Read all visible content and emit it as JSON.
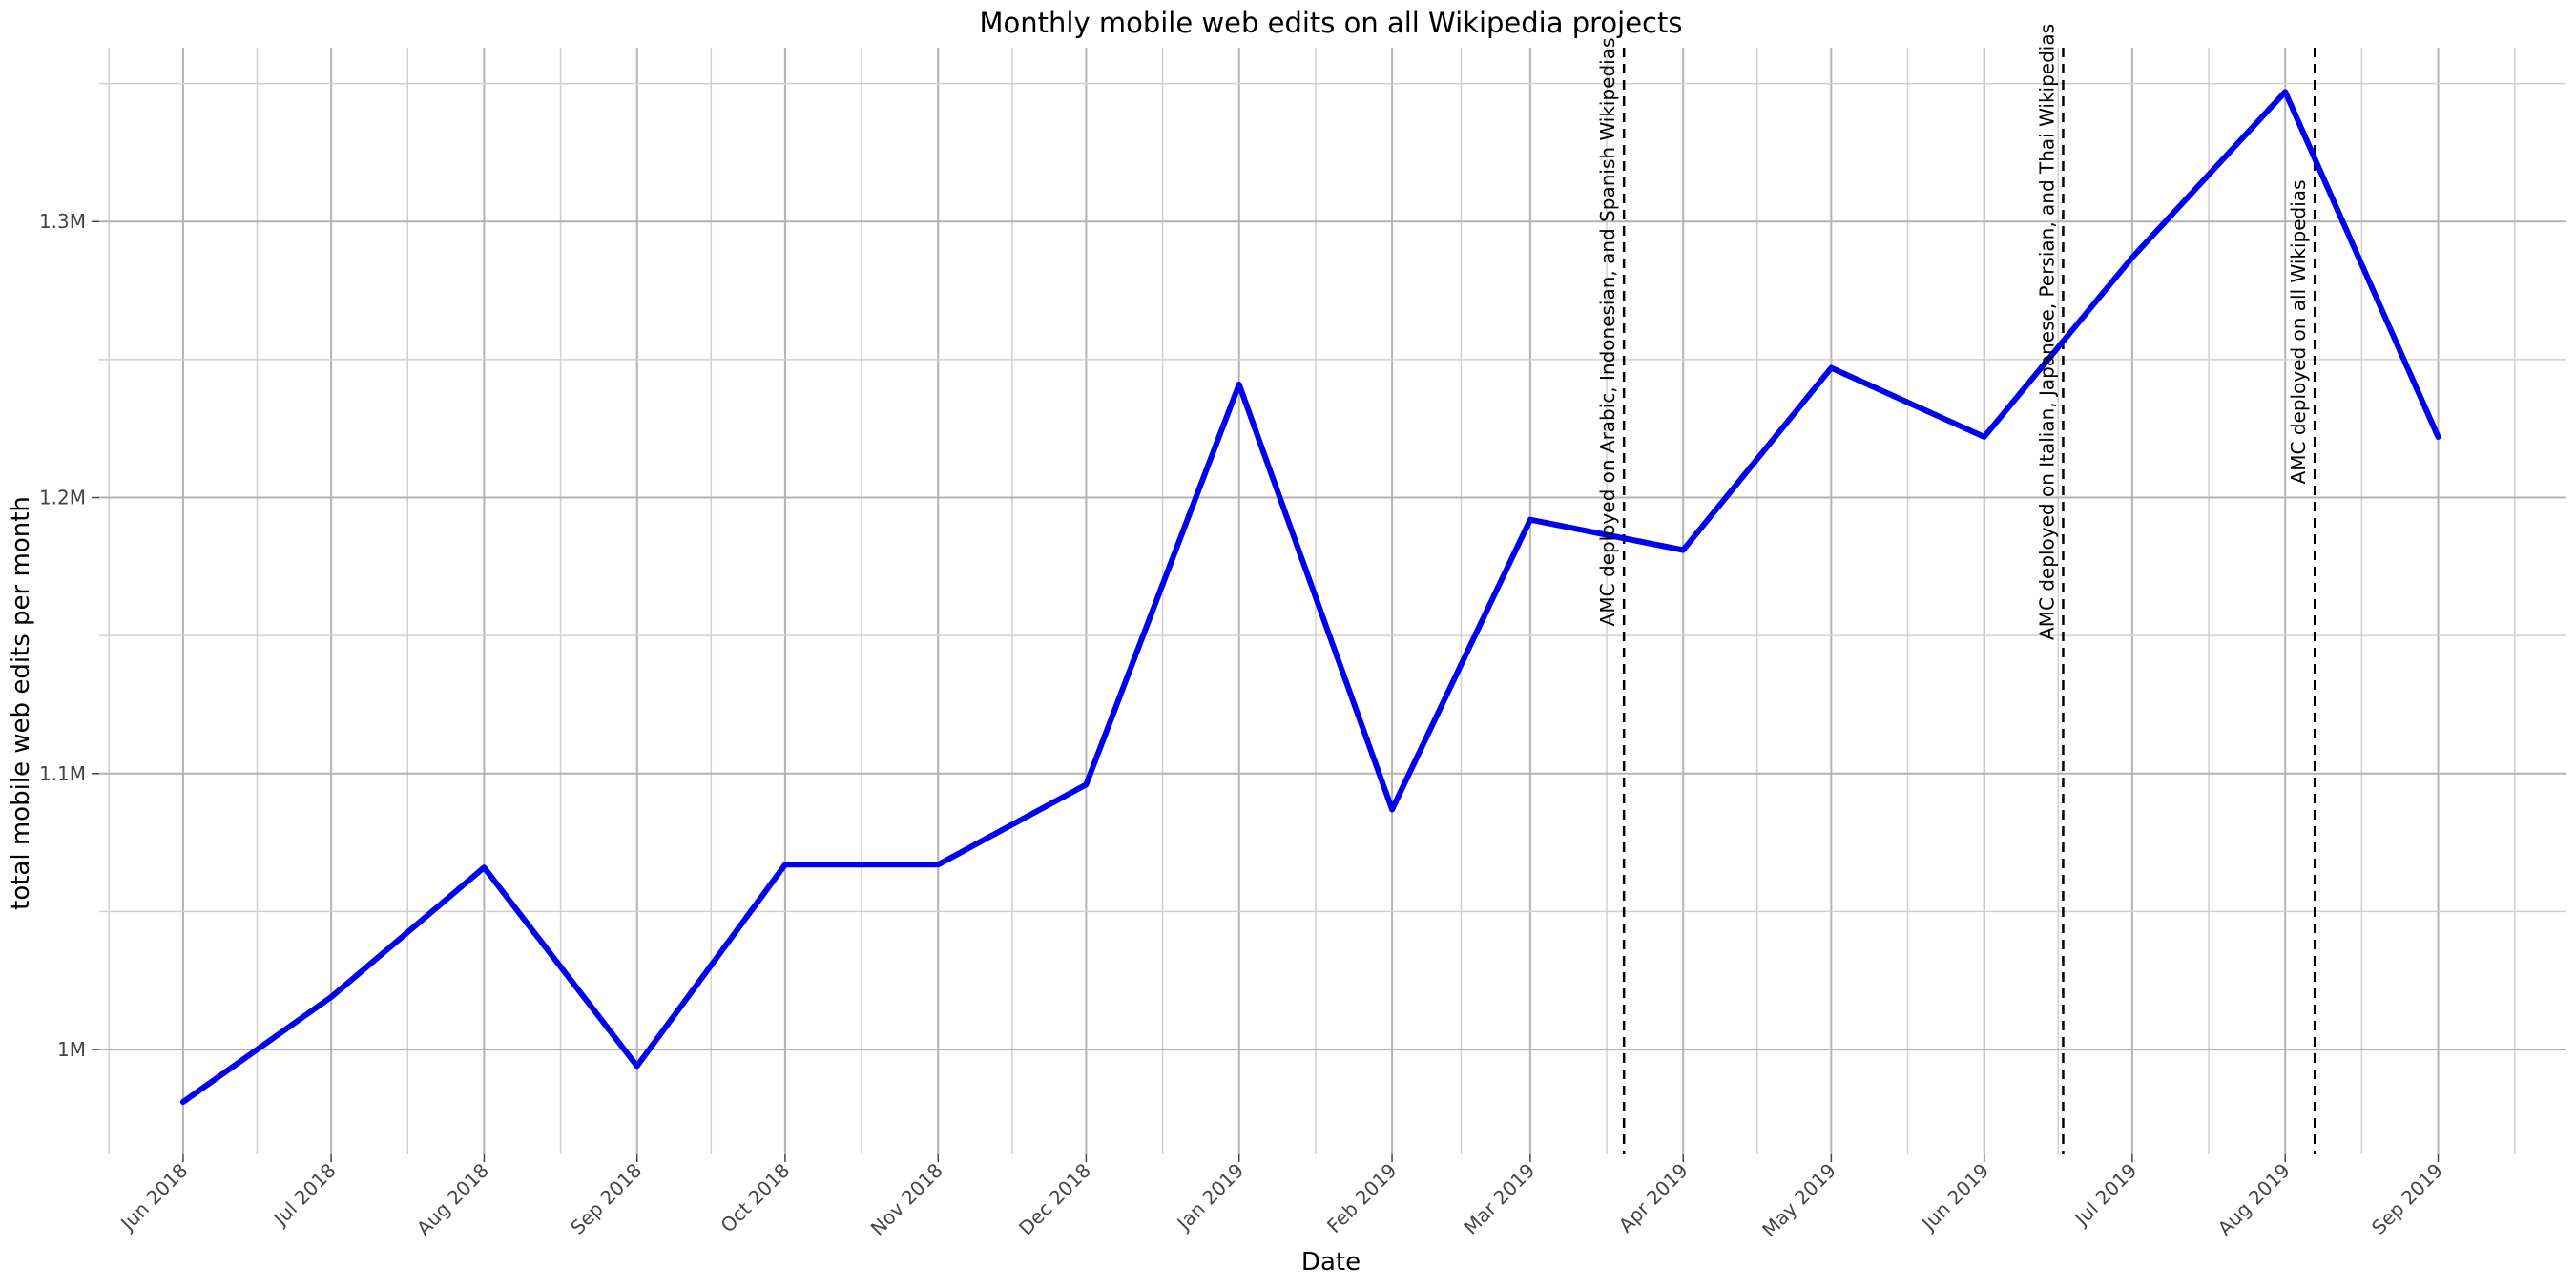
{
  "chart_data": {
    "type": "line",
    "title": "Monthly mobile web edits on all Wikipedia projects",
    "xlabel": "Date",
    "ylabel": "total mobile web edits per month",
    "x": [
      "2018-06-01",
      "2018-07-01",
      "2018-08-01",
      "2018-09-01",
      "2018-10-01",
      "2018-11-01",
      "2018-12-01",
      "2019-01-01",
      "2019-02-01",
      "2019-03-01",
      "2019-04-01",
      "2019-05-01",
      "2019-06-01",
      "2019-07-01",
      "2019-08-01",
      "2019-09-01"
    ],
    "x_tick_labels": [
      "Jun 2018",
      "Jul 2018",
      "Aug 2018",
      "Sep 2018",
      "Oct 2018",
      "Nov 2018",
      "Dec 2018",
      "Jan 2019",
      "Feb 2019",
      "Mar 2019",
      "Apr 2019",
      "May 2019",
      "Jun 2019",
      "Jul 2019",
      "Aug 2019",
      "Sep 2019"
    ],
    "series": [
      {
        "color": "#0000ee",
        "values": [
          981000,
          1019000,
          1066000,
          994000,
          1067000,
          1067000,
          1096000,
          1241000,
          1087000,
          1192000,
          1181000,
          1247000,
          1222000,
          1287000,
          1347000,
          1222000
        ]
      }
    ],
    "xlim": [
      "2018-05-15",
      "2019-09-27"
    ],
    "ylim": [
      962000,
      1363000
    ],
    "y_ticks": [
      1000000,
      1100000,
      1200000,
      1300000
    ],
    "y_tick_labels": [
      "1M",
      "1.1M",
      "1.2M",
      "1.3M"
    ],
    "grid": true,
    "legend": "none",
    "annotations": [
      {
        "date": "2019-03-20",
        "label": "AMC deployed on Arabic, Indonesian, and Spanish Wikipedias"
      },
      {
        "date": "2019-06-17",
        "label": "AMC deployed on Italian, Japanese, Persian, and Thai Wikipedias"
      },
      {
        "date": "2019-08-07",
        "label": "AMC deployed on all Wikipedias"
      }
    ]
  }
}
